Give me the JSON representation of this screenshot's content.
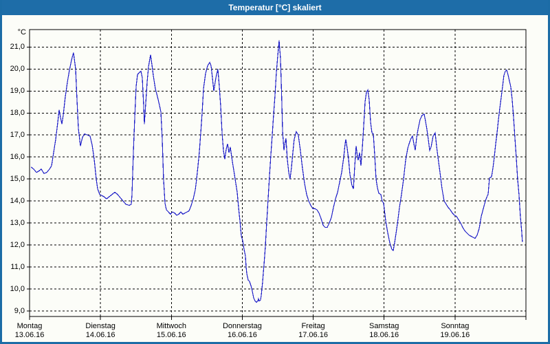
{
  "window": {
    "title": "Temperatur [°C] skaliert"
  },
  "colors": {
    "titlebar": "#1E6DA8",
    "window_border": "#1C6CA6",
    "background": "#FCFDF8",
    "line": "#2020C8",
    "grid": "#000000"
  },
  "chart_data": {
    "type": "line",
    "title": "Temperatur [°C] skaliert",
    "ylabel": "°C",
    "xlabel": "",
    "grid": "dashed",
    "legend": "none",
    "ylim": [
      8.8,
      21.8
    ],
    "xlim_days": [
      0,
      7
    ],
    "line_color": "#2020C8",
    "y_ticks": [
      {
        "value": 21,
        "label": "21,0"
      },
      {
        "value": 20,
        "label": "20,0"
      },
      {
        "value": 19,
        "label": "19,0"
      },
      {
        "value": 18,
        "label": "18,0"
      },
      {
        "value": 17,
        "label": "17,0"
      },
      {
        "value": 16,
        "label": "16,0"
      },
      {
        "value": 15,
        "label": "15,0"
      },
      {
        "value": 14,
        "label": "14,0"
      },
      {
        "value": 13,
        "label": "13,0"
      },
      {
        "value": 12,
        "label": "12,0"
      },
      {
        "value": 11,
        "label": "11,0"
      },
      {
        "value": 10,
        "label": "10,0"
      },
      {
        "value": 9,
        "label": "9,0"
      }
    ],
    "x_days": [
      {
        "name": "Montag",
        "date": "13.06.16"
      },
      {
        "name": "Dienstag",
        "date": "14.06.16"
      },
      {
        "name": "Mittwoch",
        "date": "15.06.16"
      },
      {
        "name": "Donnerstag",
        "date": "16.06.16"
      },
      {
        "name": "Freitag",
        "date": "17.06.16"
      },
      {
        "name": "Samstag",
        "date": "18.06.16"
      },
      {
        "name": "Sonntag",
        "date": "19.06.16"
      }
    ],
    "series": [
      {
        "name": "Temperatur",
        "points": [
          [
            0.019,
            15.55
          ],
          [
            0.058,
            15.45
          ],
          [
            0.097,
            15.3
          ],
          [
            0.126,
            15.35
          ],
          [
            0.165,
            15.45
          ],
          [
            0.204,
            15.25
          ],
          [
            0.242,
            15.3
          ],
          [
            0.281,
            15.45
          ],
          [
            0.31,
            15.6
          ],
          [
            0.339,
            16.2
          ],
          [
            0.368,
            16.8
          ],
          [
            0.398,
            17.6
          ],
          [
            0.417,
            18.15
          ],
          [
            0.436,
            17.8
          ],
          [
            0.456,
            17.5
          ],
          [
            0.475,
            17.9
          ],
          [
            0.504,
            18.75
          ],
          [
            0.533,
            19.4
          ],
          [
            0.562,
            19.95
          ],
          [
            0.591,
            20.4
          ],
          [
            0.62,
            20.75
          ],
          [
            0.65,
            20.0
          ],
          [
            0.669,
            18.6
          ],
          [
            0.688,
            17.3
          ],
          [
            0.717,
            16.5
          ],
          [
            0.747,
            16.9
          ],
          [
            0.776,
            17.05
          ],
          [
            0.814,
            17.0
          ],
          [
            0.853,
            16.95
          ],
          [
            0.882,
            16.55
          ],
          [
            0.911,
            15.9
          ],
          [
            0.94,
            15.0
          ],
          [
            0.96,
            14.55
          ],
          [
            0.989,
            14.3
          ],
          [
            1.018,
            14.25
          ],
          [
            1.047,
            14.2
          ],
          [
            1.086,
            14.1
          ],
          [
            1.125,
            14.2
          ],
          [
            1.163,
            14.3
          ],
          [
            1.202,
            14.4
          ],
          [
            1.241,
            14.3
          ],
          [
            1.28,
            14.15
          ],
          [
            1.319,
            14.0
          ],
          [
            1.357,
            13.85
          ],
          [
            1.406,
            13.8
          ],
          [
            1.435,
            13.85
          ],
          [
            1.445,
            14.3
          ],
          [
            1.464,
            16.2
          ],
          [
            1.483,
            17.8
          ],
          [
            1.503,
            19.2
          ],
          [
            1.522,
            19.75
          ],
          [
            1.551,
            19.85
          ],
          [
            1.571,
            19.9
          ],
          [
            1.59,
            19.6
          ],
          [
            1.609,
            18.3
          ],
          [
            1.619,
            17.5
          ],
          [
            1.638,
            18.4
          ],
          [
            1.658,
            19.4
          ],
          [
            1.677,
            20.1
          ],
          [
            1.706,
            20.65
          ],
          [
            1.726,
            20.2
          ],
          [
            1.745,
            19.7
          ],
          [
            1.774,
            19.1
          ],
          [
            1.803,
            18.75
          ],
          [
            1.832,
            18.35
          ],
          [
            1.852,
            18.05
          ],
          [
            1.871,
            16.8
          ],
          [
            1.89,
            15.0
          ],
          [
            1.91,
            13.9
          ],
          [
            1.929,
            13.6
          ],
          [
            1.958,
            13.5
          ],
          [
            1.987,
            13.4
          ],
          [
            2.017,
            13.5
          ],
          [
            2.046,
            13.45
          ],
          [
            2.075,
            13.35
          ],
          [
            2.104,
            13.4
          ],
          [
            2.133,
            13.5
          ],
          [
            2.162,
            13.4
          ],
          [
            2.191,
            13.45
          ],
          [
            2.22,
            13.5
          ],
          [
            2.249,
            13.55
          ],
          [
            2.279,
            13.8
          ],
          [
            2.308,
            14.1
          ],
          [
            2.337,
            14.5
          ],
          [
            2.356,
            15.0
          ],
          [
            2.375,
            15.6
          ],
          [
            2.395,
            16.25
          ],
          [
            2.414,
            17.1
          ],
          [
            2.434,
            18.0
          ],
          [
            2.453,
            19.1
          ],
          [
            2.482,
            19.8
          ],
          [
            2.511,
            20.15
          ],
          [
            2.54,
            20.3
          ],
          [
            2.56,
            20.15
          ],
          [
            2.579,
            19.6
          ],
          [
            2.598,
            19.0
          ],
          [
            2.627,
            19.6
          ],
          [
            2.656,
            20.0
          ],
          [
            2.676,
            19.2
          ],
          [
            2.695,
            18.3
          ],
          [
            2.715,
            17.1
          ],
          [
            2.734,
            16.3
          ],
          [
            2.753,
            15.9
          ],
          [
            2.773,
            16.35
          ],
          [
            2.792,
            16.6
          ],
          [
            2.812,
            16.2
          ],
          [
            2.831,
            16.45
          ],
          [
            2.85,
            16.0
          ],
          [
            2.87,
            15.6
          ],
          [
            2.889,
            15.2
          ],
          [
            2.909,
            14.8
          ],
          [
            2.928,
            14.4
          ],
          [
            2.947,
            13.7
          ],
          [
            2.967,
            13.1
          ],
          [
            2.986,
            12.4
          ],
          [
            3.006,
            12.2
          ],
          [
            3.025,
            11.8
          ],
          [
            3.044,
            11.5
          ],
          [
            3.054,
            11.0
          ],
          [
            3.064,
            10.7
          ],
          [
            3.083,
            10.4
          ],
          [
            3.102,
            10.35
          ],
          [
            3.122,
            10.15
          ],
          [
            3.141,
            9.9
          ],
          [
            3.16,
            9.6
          ],
          [
            3.18,
            9.45
          ],
          [
            3.199,
            9.4
          ],
          [
            3.219,
            9.45
          ],
          [
            3.228,
            9.55
          ],
          [
            3.238,
            9.45
          ],
          [
            3.257,
            9.5
          ],
          [
            3.267,
            9.7
          ],
          [
            3.286,
            10.3
          ],
          [
            3.306,
            11.1
          ],
          [
            3.325,
            11.9
          ],
          [
            3.344,
            13.0
          ],
          [
            3.364,
            14.1
          ],
          [
            3.383,
            15.1
          ],
          [
            3.403,
            16.1
          ],
          [
            3.422,
            17.0
          ],
          [
            3.441,
            17.9
          ],
          [
            3.461,
            18.8
          ],
          [
            3.48,
            19.8
          ],
          [
            3.5,
            20.6
          ],
          [
            3.519,
            21.3
          ],
          [
            3.538,
            20.5
          ],
          [
            3.548,
            19.5
          ],
          [
            3.558,
            18.4
          ],
          [
            3.568,
            17.2
          ],
          [
            3.587,
            16.3
          ],
          [
            3.606,
            16.7
          ],
          [
            3.616,
            16.85
          ],
          [
            3.635,
            15.9
          ],
          [
            3.655,
            15.3
          ],
          [
            3.674,
            15.0
          ],
          [
            3.693,
            15.5
          ],
          [
            3.713,
            16.2
          ],
          [
            3.732,
            16.8
          ],
          [
            3.761,
            17.15
          ],
          [
            3.79,
            17.0
          ],
          [
            3.819,
            16.3
          ],
          [
            3.848,
            15.5
          ],
          [
            3.878,
            14.8
          ],
          [
            3.907,
            14.3
          ],
          [
            3.936,
            14.0
          ],
          [
            3.965,
            13.8
          ],
          [
            3.994,
            13.65
          ],
          [
            4.024,
            13.65
          ],
          [
            4.053,
            13.6
          ],
          [
            4.082,
            13.45
          ],
          [
            4.111,
            13.2
          ],
          [
            4.14,
            12.9
          ],
          [
            4.169,
            12.8
          ],
          [
            4.198,
            12.8
          ],
          [
            4.227,
            13.0
          ],
          [
            4.256,
            13.25
          ],
          [
            4.285,
            13.7
          ],
          [
            4.314,
            14.1
          ],
          [
            4.344,
            14.4
          ],
          [
            4.373,
            14.85
          ],
          [
            4.402,
            15.3
          ],
          [
            4.431,
            16.0
          ],
          [
            4.45,
            16.6
          ],
          [
            4.46,
            16.8
          ],
          [
            4.479,
            16.4
          ],
          [
            4.499,
            15.9
          ],
          [
            4.518,
            15.2
          ],
          [
            4.547,
            14.7
          ],
          [
            4.567,
            14.55
          ],
          [
            4.586,
            15.6
          ],
          [
            4.605,
            16.5
          ],
          [
            4.625,
            16.0
          ],
          [
            4.634,
            15.85
          ],
          [
            4.654,
            16.2
          ],
          [
            4.673,
            15.6
          ],
          [
            4.693,
            16.4
          ],
          [
            4.712,
            17.4
          ],
          [
            4.731,
            18.5
          ],
          [
            4.751,
            18.95
          ],
          [
            4.77,
            19.05
          ],
          [
            4.789,
            18.6
          ],
          [
            4.809,
            17.6
          ],
          [
            4.828,
            17.1
          ],
          [
            4.848,
            17.05
          ],
          [
            4.867,
            16.1
          ],
          [
            4.886,
            15.0
          ],
          [
            4.906,
            14.6
          ],
          [
            4.925,
            14.35
          ],
          [
            4.954,
            14.3
          ],
          [
            4.973,
            14.0
          ],
          [
            4.993,
            13.9
          ],
          [
            5.022,
            13.1
          ],
          [
            5.051,
            12.55
          ],
          [
            5.08,
            12.1
          ],
          [
            5.109,
            11.8
          ],
          [
            5.129,
            11.75
          ],
          [
            5.148,
            12.1
          ],
          [
            5.167,
            12.5
          ],
          [
            5.187,
            12.95
          ],
          [
            5.216,
            13.7
          ],
          [
            5.245,
            14.3
          ],
          [
            5.274,
            15.0
          ],
          [
            5.303,
            15.85
          ],
          [
            5.333,
            16.4
          ],
          [
            5.362,
            16.7
          ],
          [
            5.381,
            16.85
          ],
          [
            5.4,
            16.95
          ],
          [
            5.42,
            16.6
          ],
          [
            5.439,
            16.3
          ],
          [
            5.459,
            16.9
          ],
          [
            5.478,
            17.25
          ],
          [
            5.507,
            17.7
          ],
          [
            5.536,
            17.9
          ],
          [
            5.565,
            17.95
          ],
          [
            5.585,
            17.6
          ],
          [
            5.604,
            17.25
          ],
          [
            5.623,
            16.8
          ],
          [
            5.643,
            16.3
          ],
          [
            5.662,
            16.45
          ],
          [
            5.691,
            16.95
          ],
          [
            5.72,
            17.1
          ],
          [
            5.74,
            16.5
          ],
          [
            5.759,
            16.0
          ],
          [
            5.788,
            15.3
          ],
          [
            5.817,
            14.55
          ],
          [
            5.846,
            14.0
          ],
          [
            5.875,
            13.85
          ],
          [
            5.904,
            13.7
          ],
          [
            5.933,
            13.6
          ],
          [
            5.963,
            13.45
          ],
          [
            5.992,
            13.35
          ],
          [
            6.021,
            13.3
          ],
          [
            6.05,
            13.15
          ],
          [
            6.079,
            13.0
          ],
          [
            6.108,
            12.8
          ],
          [
            6.137,
            12.65
          ],
          [
            6.166,
            12.55
          ],
          [
            6.196,
            12.45
          ],
          [
            6.225,
            12.4
          ],
          [
            6.254,
            12.35
          ],
          [
            6.283,
            12.3
          ],
          [
            6.312,
            12.45
          ],
          [
            6.341,
            12.75
          ],
          [
            6.37,
            13.3
          ],
          [
            6.399,
            13.65
          ],
          [
            6.428,
            14.0
          ],
          [
            6.457,
            14.25
          ],
          [
            6.467,
            14.3
          ],
          [
            6.486,
            15.05
          ],
          [
            6.515,
            15.1
          ],
          [
            6.535,
            15.5
          ],
          [
            6.554,
            16.0
          ],
          [
            6.573,
            16.6
          ],
          [
            6.593,
            17.1
          ],
          [
            6.612,
            17.7
          ],
          [
            6.631,
            18.2
          ],
          [
            6.651,
            18.7
          ],
          [
            6.67,
            19.2
          ],
          [
            6.689,
            19.7
          ],
          [
            6.709,
            19.9
          ],
          [
            6.728,
            19.95
          ],
          [
            6.747,
            19.75
          ],
          [
            6.767,
            19.45
          ],
          [
            6.786,
            19.2
          ],
          [
            6.805,
            18.65
          ],
          [
            6.825,
            17.8
          ],
          [
            6.844,
            16.9
          ],
          [
            6.863,
            16.0
          ],
          [
            6.883,
            15.0
          ],
          [
            6.902,
            14.3
          ],
          [
            6.921,
            13.3
          ],
          [
            6.941,
            12.6
          ],
          [
            6.95,
            12.15
          ]
        ]
      }
    ]
  }
}
